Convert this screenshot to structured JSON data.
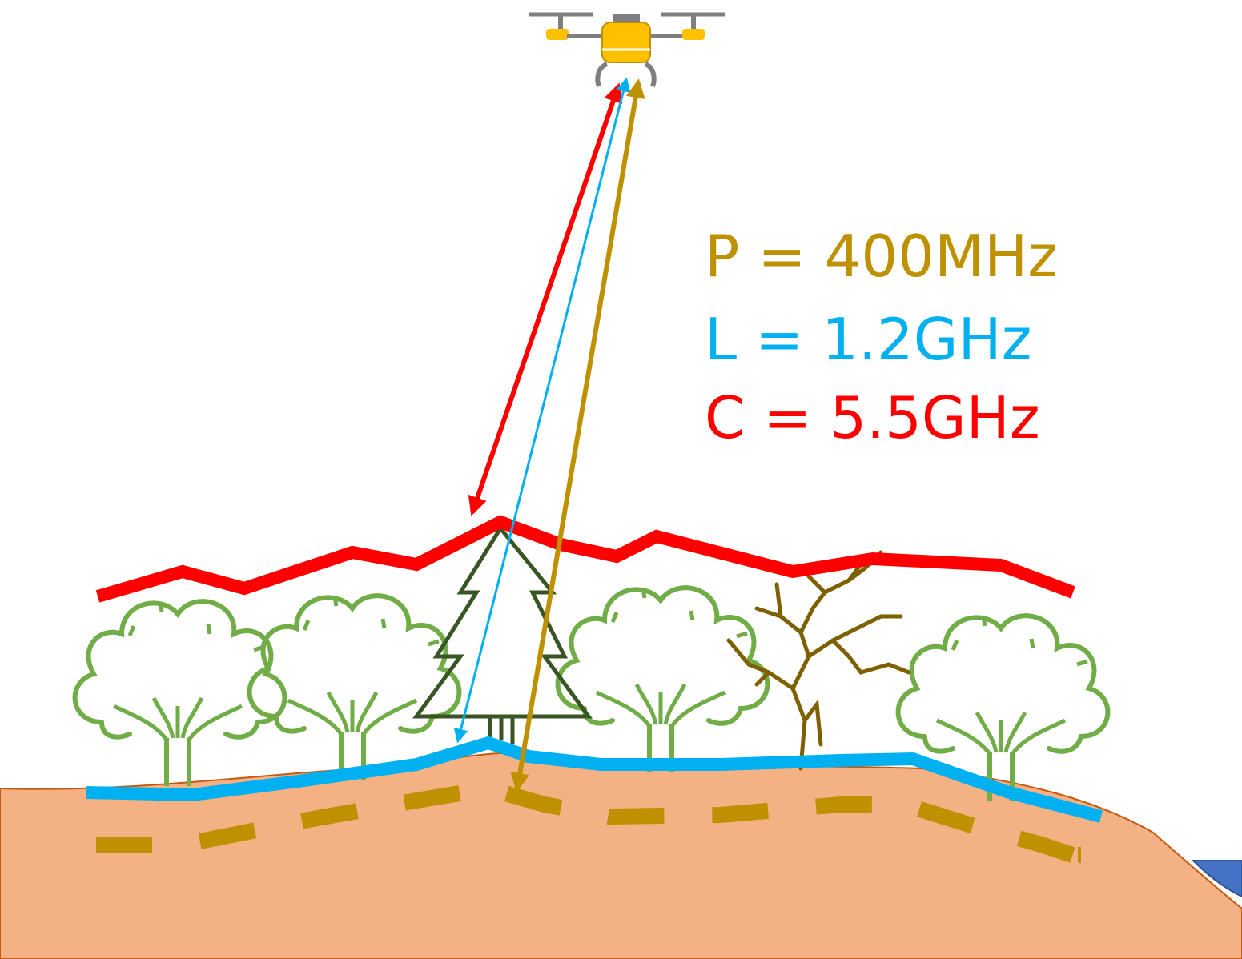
{
  "legend": [
    {
      "key": "p_band",
      "text": "P = 400MHz",
      "color": "#BF9000"
    },
    {
      "key": "l_band",
      "text": "L = 1.2GHz",
      "color": "#00B0F0"
    },
    {
      "key": "c_band",
      "text": "C = 5.5GHz",
      "color": "#FF0000"
    }
  ],
  "colors": {
    "ground": "#F4B183",
    "ground_edge": "#C55A11",
    "water": "#4472C4",
    "deciduous_tree": "#70AD47",
    "conifer_tree": "#375623",
    "dead_tree": "#7F6000",
    "drone_body": "#FFC000",
    "drone_frame": "#7F7F7F"
  },
  "icons": [
    "drone-icon",
    "deciduous-tree-icon",
    "conifer-tree-icon",
    "dead-tree-icon",
    "water-icon"
  ]
}
